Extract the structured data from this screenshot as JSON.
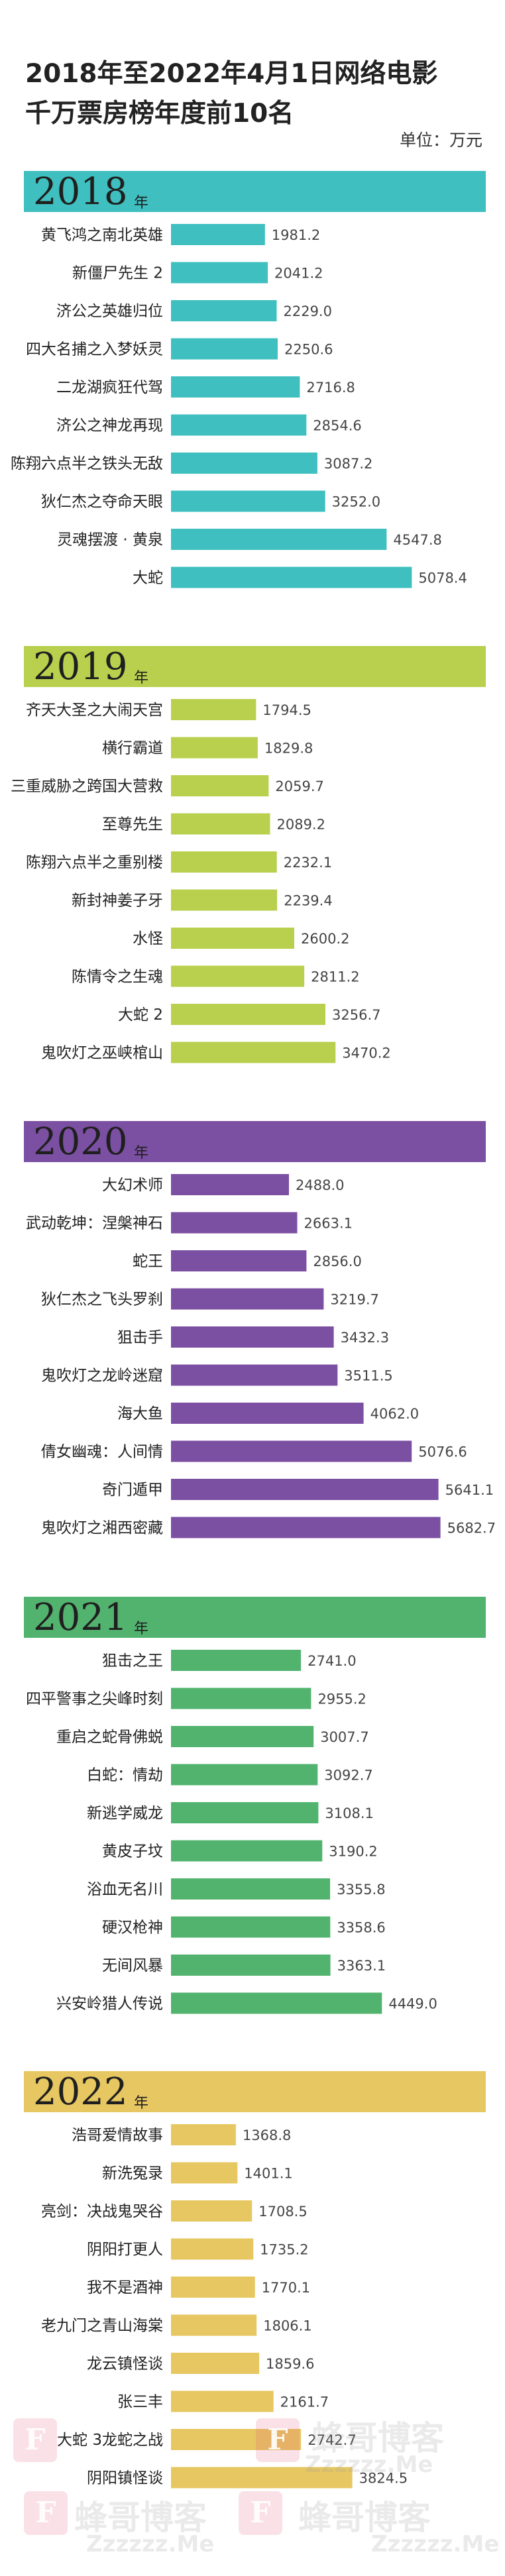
{
  "title_line1": "2018年至2022年4月1日网络电影",
  "title_line2": "千万票房榜年度前10名",
  "unit": "单位：万元",
  "year_suffix": "年",
  "watermark": {
    "cn": "蜂哥博客",
    "url": "Zzzzzz.Me",
    "badge": "F"
  },
  "colors": {
    "2018": "#3fbfbf",
    "2019": "#b8d04e",
    "2020": "#7b4fa2",
    "2021": "#52b36f",
    "2022": "#e7c761"
  },
  "chart_data": [
    {
      "type": "bar",
      "title": "2018",
      "categories": [
        "黄飞鸿之南北英雄",
        "新僵尸先生 2",
        "济公之英雄归位",
        "四大名捕之入梦妖灵",
        "二龙湖疯狂代驾",
        "济公之神龙再现",
        "陈翔六点半之铁头无敌",
        "狄仁杰之夺命天眼",
        "灵魂摆渡 · 黄泉",
        "大蛇"
      ],
      "values": [
        1981.2,
        2041.2,
        2229.0,
        2250.6,
        2716.8,
        2854.6,
        3087.2,
        3252.0,
        4547.8,
        5078.4
      ],
      "value_labels": [
        "1981.2",
        "2041.2",
        "2229.0",
        "2250.6",
        "2716.8",
        "2854.6",
        "3087.2",
        "3252.0",
        "4547.8",
        "5078.4"
      ]
    },
    {
      "type": "bar",
      "title": "2019",
      "categories": [
        "齐天大圣之大闹天宫",
        "横行霸道",
        "三重威胁之跨国大营救",
        "至尊先生",
        "陈翔六点半之重别楼",
        "新封神姜子牙",
        "水怪",
        "陈情令之生魂",
        "大蛇 2",
        "鬼吹灯之巫峡棺山"
      ],
      "values": [
        1794.5,
        1829.8,
        2059.7,
        2089.2,
        2232.1,
        2239.4,
        2600.2,
        2811.2,
        3256.7,
        3470.2
      ],
      "value_labels": [
        "1794.5",
        "1829.8",
        "2059.7",
        "2089.2",
        "2232.1",
        "2239.4",
        "2600.2",
        "2811.2",
        "3256.7",
        "3470.2"
      ]
    },
    {
      "type": "bar",
      "title": "2020",
      "categories": [
        "大幻术师",
        "武动乾坤：涅槃神石",
        "蛇王",
        "狄仁杰之飞头罗刹",
        "狙击手",
        "鬼吹灯之龙岭迷窟",
        "海大鱼",
        "倩女幽魂：人间情",
        "奇门遁甲",
        "鬼吹灯之湘西密藏"
      ],
      "values": [
        2488.0,
        2663.1,
        2856.0,
        3219.7,
        3432.3,
        3511.5,
        4062.0,
        5076.6,
        5641.1,
        5682.7
      ],
      "value_labels": [
        "2488.0",
        "2663.1",
        "2856.0",
        "3219.7",
        "3432.3",
        "3511.5",
        "4062.0",
        "5076.6",
        "5641.1",
        "5682.7"
      ]
    },
    {
      "type": "bar",
      "title": "2021",
      "categories": [
        "狙击之王",
        "四平警事之尖峰时刻",
        "重启之蛇骨佛蜕",
        "白蛇：情劫",
        "新逃学威龙",
        "黄皮子坟",
        "浴血无名川",
        "硬汉枪神",
        "无间风暴",
        "兴安岭猎人传说"
      ],
      "values": [
        2741.0,
        2955.2,
        3007.7,
        3092.7,
        3108.1,
        3190.2,
        3355.8,
        3358.6,
        3363.1,
        4449.0
      ],
      "value_labels": [
        "2741.0",
        "2955.2",
        "3007.7",
        "3092.7",
        "3108.1",
        "3190.2",
        "3355.8",
        "3358.6",
        "3363.1",
        "4449.0"
      ]
    },
    {
      "type": "bar",
      "title": "2022",
      "categories": [
        "浩哥爱情故事",
        "新洗冤录",
        "亮剑：决战鬼哭谷",
        "阴阳打更人",
        "我不是酒神",
        "老九门之青山海棠",
        "龙云镇怪谈",
        "张三丰",
        "大蛇 3龙蛇之战",
        "阴阳镇怪谈"
      ],
      "values": [
        1368.8,
        1401.1,
        1708.5,
        1735.2,
        1770.1,
        1806.1,
        1859.6,
        2161.7,
        2742.7,
        3824.5
      ],
      "value_labels": [
        "1368.8",
        "1401.1",
        "1708.5",
        "1735.2",
        "1770.1",
        "1806.1",
        "1859.6",
        "2161.7",
        "2742.7",
        "3824.5"
      ]
    }
  ]
}
